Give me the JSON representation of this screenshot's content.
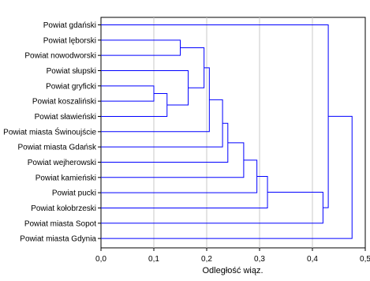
{
  "chart_data": {
    "type": "dendrogram",
    "orientation": "horizontal",
    "xlabel": "Odległość wiąz.",
    "xlim": [
      0.0,
      0.5
    ],
    "xticks": [
      "0,0",
      "0,1",
      "0,2",
      "0,3",
      "0,4",
      "0,5"
    ],
    "xtick_values": [
      0.0,
      0.1,
      0.2,
      0.3,
      0.4,
      0.5
    ],
    "grid": "vertical",
    "leaves": [
      "Powiat gdański",
      "Powiat lęborski",
      "Powiat nowodworski",
      "Powiat słupski",
      "Powiat gryficki",
      "Powiat koszaliński",
      "Powiat sławieński",
      "Powiat miasta Świnoujście",
      "Powiat miasta Gdańsk",
      "Powiat wejherowski",
      "Powiat kamieński",
      "Powiat pucki",
      "Powiat kołobrzeski",
      "Powiat miasta Sopot",
      "Powiat miasta Gdynia"
    ],
    "merges": [
      {
        "a": "L4",
        "b": "L5",
        "height": 0.1
      },
      {
        "a": "L1",
        "b": "L2",
        "height": 0.15
      },
      {
        "a": "M0",
        "b": "L6",
        "height": 0.125
      },
      {
        "a": "L3",
        "b": "M2",
        "height": 0.165
      },
      {
        "a": "M1",
        "b": "M3",
        "height": 0.195
      },
      {
        "a": "M4",
        "b": "L7",
        "height": 0.205
      },
      {
        "a": "M5",
        "b": "L8",
        "height": 0.23
      },
      {
        "a": "M6",
        "b": "L9",
        "height": 0.24
      },
      {
        "a": "M7",
        "b": "L10",
        "height": 0.27
      },
      {
        "a": "M8",
        "b": "L11",
        "height": 0.295
      },
      {
        "a": "M9",
        "b": "L12",
        "height": 0.315
      },
      {
        "a": "M10",
        "b": "L13",
        "height": 0.42
      },
      {
        "a": "L0",
        "b": "M11",
        "height": 0.43
      },
      {
        "a": "M12",
        "b": "L14",
        "height": 0.475
      }
    ],
    "colors": {
      "line": "#0000ff",
      "grid": "#c8c8c8",
      "axis": "#000000",
      "text": "#000000"
    }
  }
}
